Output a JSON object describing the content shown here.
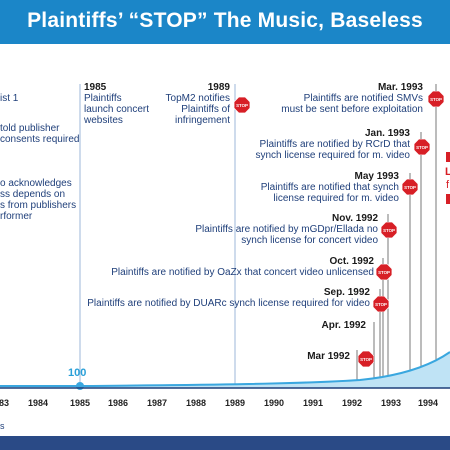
{
  "title": "Plaintiffs’ “STOP” The Music, Baseless",
  "left_fragments": {
    "a": "ist 1",
    "b": [
      "told publisher",
      "consents required"
    ],
    "c": [
      "o acknowledges",
      "ss depends on",
      "s from publishers",
      "rformer"
    ]
  },
  "events": [
    {
      "id": "e1985",
      "date": "1985",
      "lines": [
        "Plaintiffs",
        "launch concert",
        "websites"
      ]
    },
    {
      "id": "e1989",
      "date": "1989",
      "lines": [
        "TopM2 notifies",
        "Plaintiffs of",
        "infringement"
      ]
    },
    {
      "id": "emar93",
      "date": "Mar. 1993",
      "lines": [
        "Plaintiffs are notified SMVs",
        "must be sent before exploitation"
      ]
    },
    {
      "id": "ejan93",
      "date": "Jan. 1993",
      "lines": [
        "Plaintiffs are notified by RCrD that",
        "synch license required for m. video"
      ]
    },
    {
      "id": "emay93",
      "date": "May 1993",
      "lines": [
        "Plaintiffs are notified that synch",
        "license required for m. video"
      ]
    },
    {
      "id": "enov92",
      "date": "Nov. 1992",
      "lines": [
        "Plaintiffs are notified by mGDpr/Ellada no",
        "synch license for concert video"
      ]
    },
    {
      "id": "eoct92",
      "date": "Oct. 1992",
      "lines": [
        "Plaintiffs are notified by OaZx that concert video unlicensed"
      ]
    },
    {
      "id": "esep92",
      "date": "Sep. 1992",
      "lines": [
        "Plaintiffs are notified by DUARc synch license required for video"
      ]
    },
    {
      "id": "eapr92",
      "date": "Apr. 1992",
      "lines": []
    },
    {
      "id": "emar92",
      "date": "Mar 1992",
      "lines": []
    }
  ],
  "stop_label": "STOP",
  "right_fragments": [
    "L",
    "f"
  ],
  "start_value": "100",
  "x_axis": [
    "83",
    "1984",
    "1985",
    "1986",
    "1987",
    "1988",
    "1989",
    "1990",
    "1991",
    "1992",
    "1993",
    "1994"
  ],
  "unit_fragment": "s",
  "colors": {
    "title_bg": "#1b86c8",
    "footer": "#2a4a86",
    "text": "#1f3f7a",
    "stop": "#d71f26",
    "curve": "#3aa7df",
    "fill": "#bfe3f5"
  }
}
